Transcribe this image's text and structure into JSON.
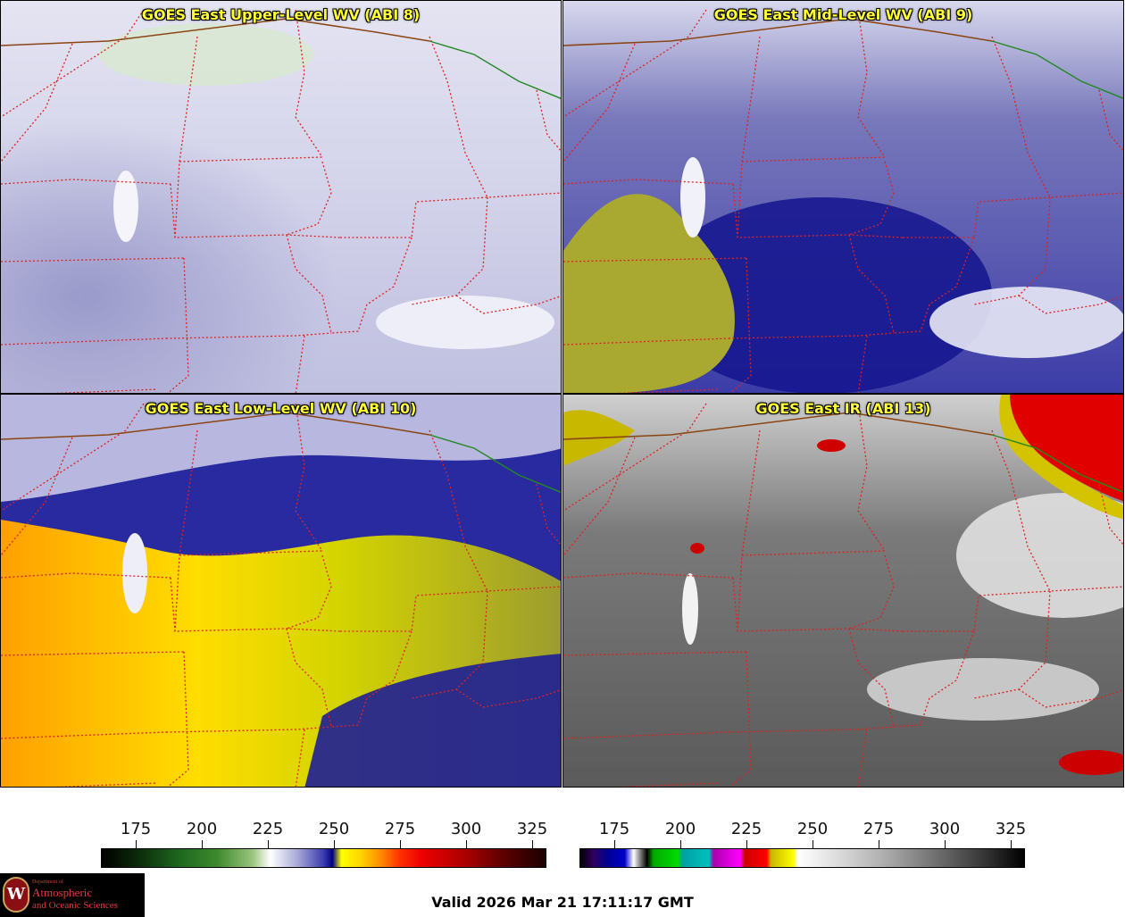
{
  "panels": [
    {
      "id": "upper",
      "title": "GOES East Upper-Level WV (ABI 8)"
    },
    {
      "id": "mid",
      "title": "GOES East Mid-Level WV (ABI 9)"
    },
    {
      "id": "low",
      "title": "GOES East Low-Level WV (ABI 10)"
    },
    {
      "id": "ir",
      "title": "GOES East IR (ABI 13)"
    }
  ],
  "colorbars": {
    "wv": {
      "ticks": [
        "175",
        "200",
        "225",
        "250",
        "275",
        "300",
        "325"
      ]
    },
    "ir": {
      "ticks": [
        "175",
        "200",
        "225",
        "250",
        "275",
        "300",
        "325"
      ]
    }
  },
  "valid_time": "Valid 2026 Mar 21 17:11:17 GMT",
  "logo": {
    "dept": "Department of",
    "line1": "Atmospheric",
    "line2": "and Oceanic Sciences",
    "seal_letter": "W"
  },
  "colors": {
    "state_border": "#dd2222",
    "country_border": "#8b4513",
    "province_border": "#228822"
  }
}
